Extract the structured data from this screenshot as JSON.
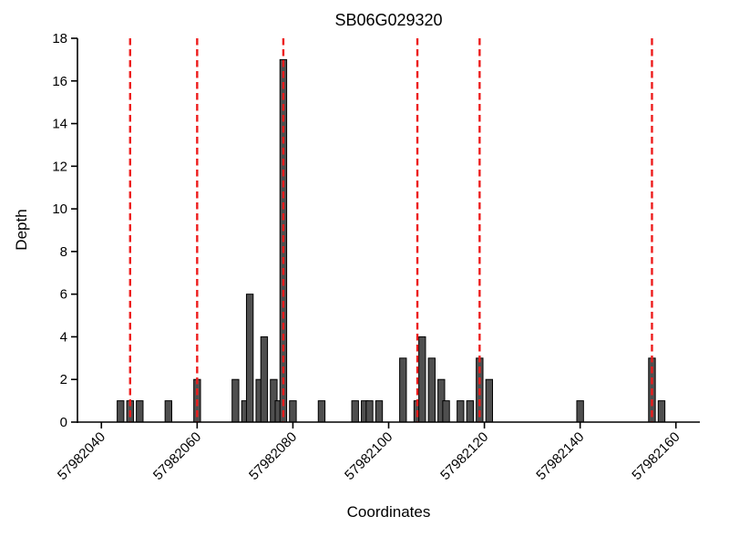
{
  "chart_data": {
    "type": "bar",
    "title": "SB06G029320",
    "xlabel": "Coordinates",
    "ylabel": "Depth",
    "xlim": [
      57982035,
      57982165
    ],
    "ylim": [
      0,
      18
    ],
    "xticks": [
      57982040,
      57982060,
      57982080,
      57982100,
      57982120,
      57982140,
      57982160
    ],
    "yticks": [
      0,
      2,
      4,
      6,
      8,
      10,
      12,
      14,
      16,
      18
    ],
    "bar_width": 1.4,
    "bar_color": "#4f4f4f",
    "bar_edge_color": "#000000",
    "vline_color": "#ed1c1c",
    "axis_color": "#000000",
    "bars": [
      {
        "x": 57982044,
        "depth": 1
      },
      {
        "x": 57982046,
        "depth": 1
      },
      {
        "x": 57982048,
        "depth": 1
      },
      {
        "x": 57982054,
        "depth": 1
      },
      {
        "x": 57982060,
        "depth": 2
      },
      {
        "x": 57982068,
        "depth": 2
      },
      {
        "x": 57982070,
        "depth": 1
      },
      {
        "x": 57982071,
        "depth": 6
      },
      {
        "x": 57982073,
        "depth": 2
      },
      {
        "x": 57982074,
        "depth": 4
      },
      {
        "x": 57982076,
        "depth": 2
      },
      {
        "x": 57982077,
        "depth": 1
      },
      {
        "x": 57982078,
        "depth": 17
      },
      {
        "x": 57982080,
        "depth": 1
      },
      {
        "x": 57982086,
        "depth": 1
      },
      {
        "x": 57982093,
        "depth": 1
      },
      {
        "x": 57982095,
        "depth": 1
      },
      {
        "x": 57982096,
        "depth": 1
      },
      {
        "x": 57982098,
        "depth": 1
      },
      {
        "x": 57982103,
        "depth": 3
      },
      {
        "x": 57982106,
        "depth": 1
      },
      {
        "x": 57982107,
        "depth": 4
      },
      {
        "x": 57982109,
        "depth": 3
      },
      {
        "x": 57982111,
        "depth": 2
      },
      {
        "x": 57982112,
        "depth": 1
      },
      {
        "x": 57982115,
        "depth": 1
      },
      {
        "x": 57982117,
        "depth": 1
      },
      {
        "x": 57982119,
        "depth": 3
      },
      {
        "x": 57982121,
        "depth": 2
      },
      {
        "x": 57982140,
        "depth": 1
      },
      {
        "x": 57982155,
        "depth": 3
      },
      {
        "x": 57982157,
        "depth": 1
      }
    ],
    "vlines": [
      57982046,
      57982060,
      57982078,
      57982106,
      57982119,
      57982155
    ]
  }
}
